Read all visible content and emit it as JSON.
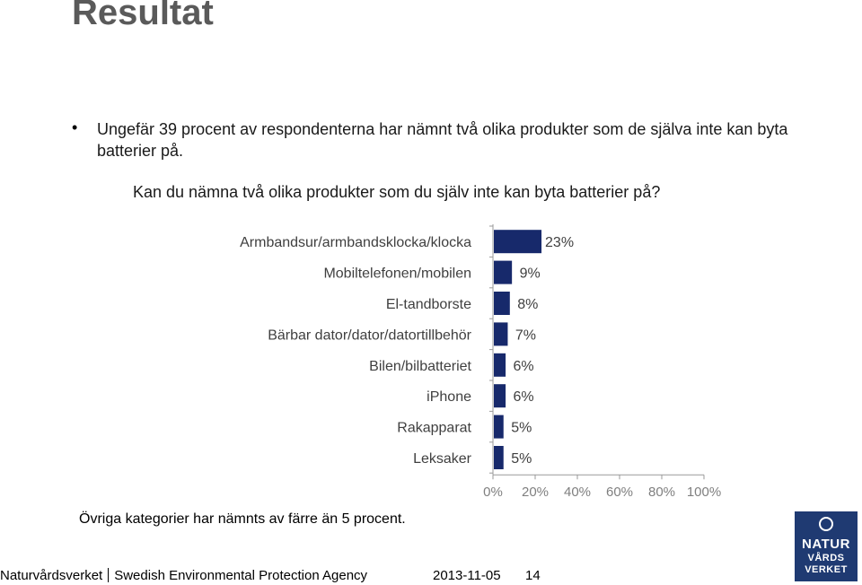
{
  "page": {
    "title": "Resultat",
    "bullet": "Ungefär 39 procent av respondenterna har nämnt två olika produkter som de själva inte kan byta batterier på.",
    "question": "Kan du nämna två olika produkter som du själv inte kan byta batterier på?",
    "note": "Övriga kategorier har nämnts av färre än 5 procent."
  },
  "footer": {
    "org": "Naturvårdsverket",
    "org_en": "Swedish Environmental Protection Agency",
    "date": "2013-11-05",
    "page_number": "14"
  },
  "logo": {
    "line1": "NATUR",
    "line2": "VÅRDS",
    "line3": "VERKET"
  },
  "chart_data": {
    "type": "bar",
    "orientation": "horizontal",
    "categories": [
      "Armbandsur/armbandsklocka/klocka",
      "Mobiltelefonen/mobilen",
      "El-tandborste",
      "Bärbar dator/dator/datortillbehör",
      "Bilen/bilbatteriet",
      "iPhone",
      "Rakapparat",
      "Leksaker"
    ],
    "values": [
      23,
      9,
      8,
      7,
      6,
      6,
      5,
      5
    ],
    "value_labels": [
      "23%",
      "9%",
      "8%",
      "7%",
      "6%",
      "6%",
      "5%",
      "5%"
    ],
    "xlim": [
      0,
      100
    ],
    "x_ticks": [
      "0%",
      "20%",
      "40%",
      "60%",
      "80%",
      "100%"
    ],
    "bar_color": "#17296b",
    "grid": false
  }
}
